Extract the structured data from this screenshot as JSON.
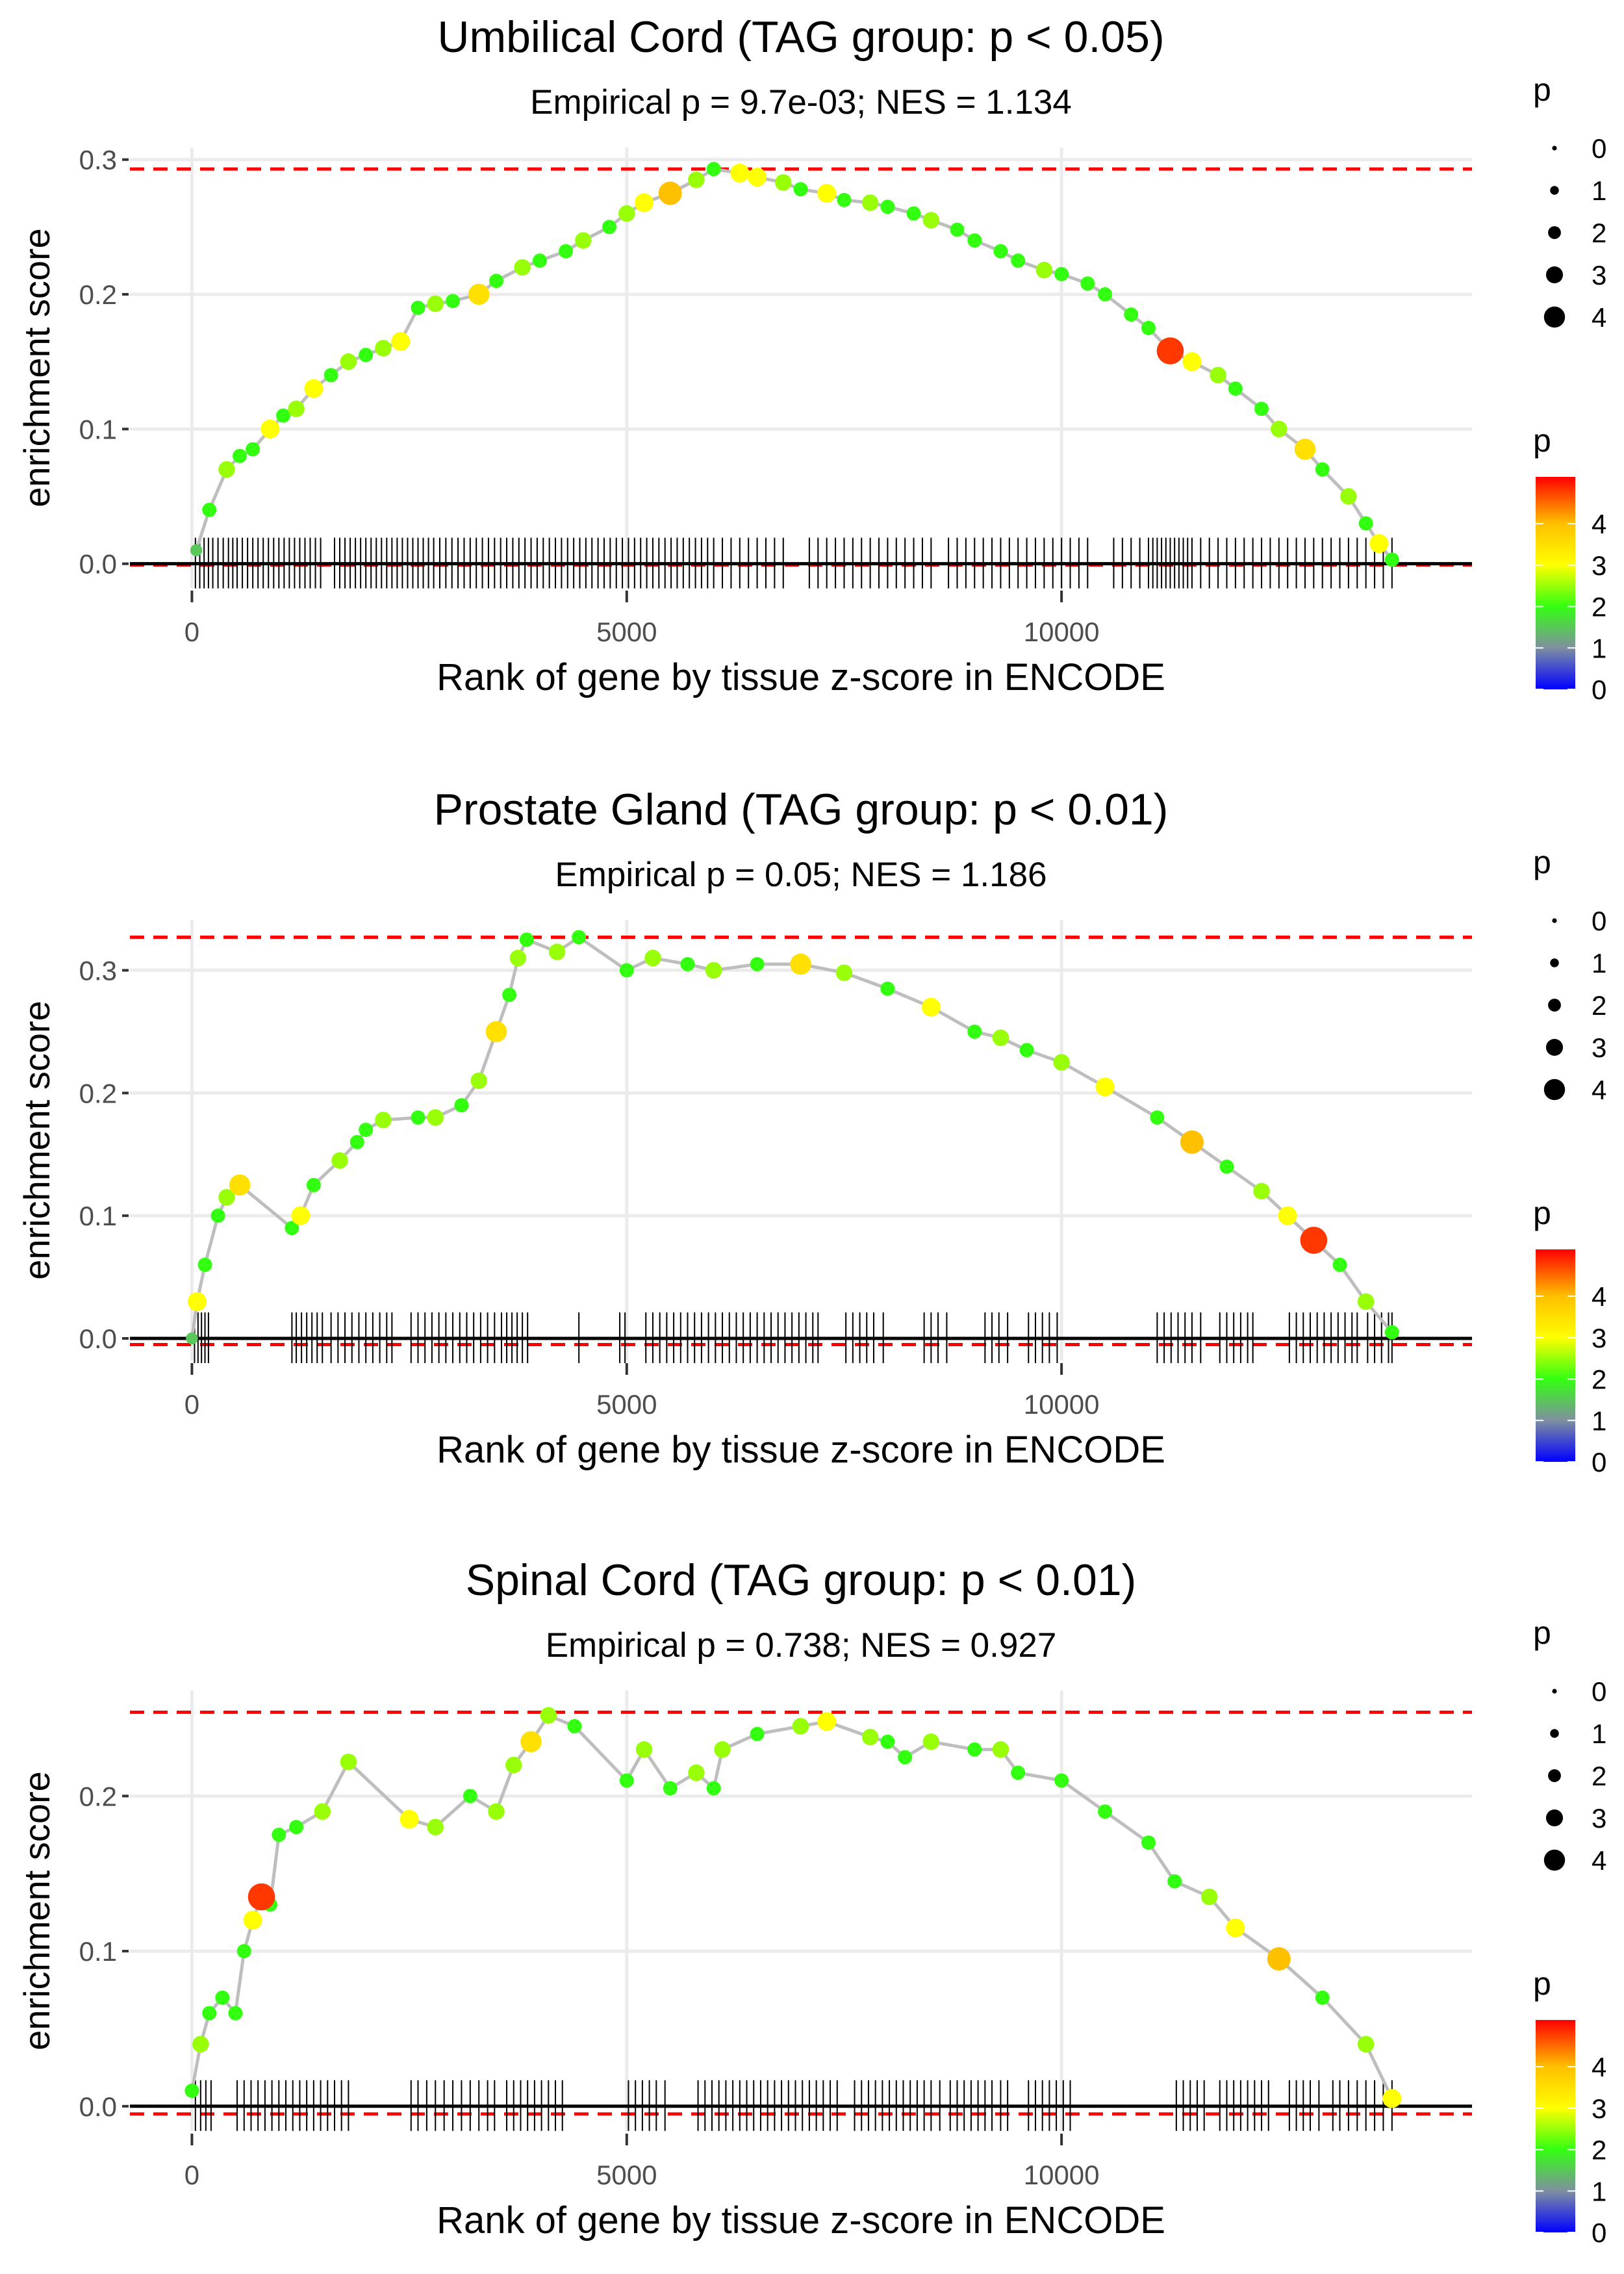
{
  "chart_data": [
    {
      "type": "scatter",
      "title": "Umbilical Cord (TAG group: p < 0.05)",
      "subtitle": "Empirical p = 9.7e-03; NES = 1.134",
      "xlabel": "Rank of gene by tissue z-score in ENCODE",
      "ylabel": "enrichment score",
      "xlim": [
        -713,
        14720
      ],
      "ylim": [
        -0.018,
        0.309
      ],
      "xticks": [
        0,
        5000,
        10000
      ],
      "xtick_labels": [
        "0",
        "5000",
        "10000"
      ],
      "yticks": [
        0,
        0.1,
        0.2,
        0.3
      ],
      "ytick_labels": [
        "0.0",
        "0.1",
        "0.2",
        "0.3"
      ],
      "max_es": 0.293,
      "min_es": -0.001,
      "points": [
        [
          50,
          0.01,
          1.5
        ],
        [
          200,
          0.04,
          2
        ],
        [
          400,
          0.07,
          2.5
        ],
        [
          550,
          0.08,
          2
        ],
        [
          700,
          0.085,
          2
        ],
        [
          900,
          0.1,
          3
        ],
        [
          1050,
          0.11,
          2
        ],
        [
          1200,
          0.115,
          2.5
        ],
        [
          1400,
          0.13,
          3
        ],
        [
          1600,
          0.14,
          2
        ],
        [
          1800,
          0.15,
          2.5
        ],
        [
          2000,
          0.155,
          2
        ],
        [
          2200,
          0.16,
          2.5
        ],
        [
          2400,
          0.165,
          3
        ],
        [
          2600,
          0.19,
          2
        ],
        [
          2800,
          0.193,
          2.5
        ],
        [
          3000,
          0.195,
          2
        ],
        [
          3300,
          0.2,
          3.5
        ],
        [
          3500,
          0.21,
          2
        ],
        [
          3800,
          0.22,
          2.5
        ],
        [
          4000,
          0.225,
          2
        ],
        [
          4300,
          0.232,
          2
        ],
        [
          4500,
          0.24,
          2.5
        ],
        [
          4800,
          0.25,
          2
        ],
        [
          5000,
          0.26,
          2.5
        ],
        [
          5200,
          0.268,
          3
        ],
        [
          5500,
          0.275,
          4
        ],
        [
          5800,
          0.285,
          2.5
        ],
        [
          6000,
          0.293,
          2
        ],
        [
          6300,
          0.29,
          3
        ],
        [
          6500,
          0.287,
          3
        ],
        [
          6800,
          0.283,
          2.5
        ],
        [
          7000,
          0.278,
          2
        ],
        [
          7300,
          0.275,
          3
        ],
        [
          7500,
          0.27,
          2
        ],
        [
          7800,
          0.268,
          2.5
        ],
        [
          8000,
          0.265,
          2
        ],
        [
          8300,
          0.26,
          2
        ],
        [
          8500,
          0.255,
          2.5
        ],
        [
          8800,
          0.248,
          2
        ],
        [
          9000,
          0.24,
          2
        ],
        [
          9300,
          0.232,
          2
        ],
        [
          9500,
          0.225,
          2
        ],
        [
          9800,
          0.218,
          2.5
        ],
        [
          10000,
          0.215,
          2
        ],
        [
          10300,
          0.208,
          2
        ],
        [
          10500,
          0.2,
          2
        ],
        [
          10800,
          0.185,
          2
        ],
        [
          11000,
          0.175,
          2
        ],
        [
          11250,
          0.158,
          4.8
        ],
        [
          11500,
          0.15,
          3
        ],
        [
          11800,
          0.14,
          2.5
        ],
        [
          12000,
          0.13,
          2
        ],
        [
          12300,
          0.115,
          2
        ],
        [
          12500,
          0.1,
          2.5
        ],
        [
          12800,
          0.085,
          3.5
        ],
        [
          13000,
          0.07,
          2
        ],
        [
          13300,
          0.05,
          2.5
        ],
        [
          13500,
          0.03,
          2
        ],
        [
          13650,
          0.015,
          3
        ],
        [
          13800,
          0.003,
          2
        ]
      ],
      "rug": [
        40,
        90,
        140,
        190,
        240,
        300,
        360,
        420,
        470,
        520,
        580,
        640,
        700,
        760,
        820,
        880,
        940,
        1000,
        1060,
        1120,
        1180,
        1240,
        1300,
        1360,
        1420,
        1480,
        1640,
        1700,
        1760,
        1820,
        1880,
        1940,
        2000,
        2060,
        2120,
        2180,
        2240,
        2300,
        2360,
        2420,
        2480,
        2540,
        2600,
        2660,
        2720,
        2780,
        2850,
        2920,
        2990,
        3060,
        3130,
        3200,
        3270,
        3340,
        3410,
        3480,
        3550,
        3620,
        3690,
        3760,
        3830,
        3900,
        3970,
        4040,
        4110,
        4180,
        4250,
        4320,
        4390,
        4460,
        4530,
        4600,
        4670,
        4740,
        4810,
        4880,
        4950,
        5020,
        5090,
        5160,
        5230,
        5300,
        5370,
        5440,
        5510,
        5580,
        5650,
        5720,
        5790,
        5860,
        5930,
        6000,
        6100,
        6200,
        6300,
        6400,
        6500,
        6600,
        6700,
        6800,
        7100,
        7200,
        7300,
        7400,
        7500,
        7600,
        7700,
        7800,
        7900,
        8000,
        8100,
        8200,
        8300,
        8400,
        8500,
        8700,
        8800,
        8900,
        9000,
        9100,
        9200,
        9300,
        9400,
        9500,
        9600,
        9700,
        9800,
        9900,
        10000,
        10100,
        10200,
        10300,
        10600,
        10700,
        10800,
        10900,
        11000,
        11050,
        11100,
        11150,
        11200,
        11250,
        11300,
        11350,
        11400,
        11450,
        11500,
        11600,
        11700,
        11800,
        11900,
        12000,
        12100,
        12200,
        12300,
        12400,
        12500,
        12600,
        12700,
        12800,
        12900,
        13000,
        13100,
        13200,
        13300,
        13400,
        13500,
        13600,
        13700,
        13800
      ],
      "size_legend": {
        "title": "p",
        "labels": [
          "0",
          "1",
          "2",
          "3",
          "4"
        ]
      },
      "color_legend": {
        "title": "p",
        "labels": [
          "4",
          "3",
          "2",
          "1",
          "0"
        ],
        "limits": [
          0,
          5.13
        ]
      }
    },
    {
      "type": "scatter",
      "title": "Prostate Gland (TAG group: p < 0.01)",
      "subtitle": "Empirical p = 0.05; NES = 1.186",
      "xlabel": "Rank of gene by tissue z-score in ENCODE",
      "ylabel": "enrichment score",
      "xlim": [
        -713,
        14720
      ],
      "ylim": [
        -0.018,
        0.341
      ],
      "xticks": [
        0,
        5000,
        10000
      ],
      "xtick_labels": [
        "0",
        "5000",
        "10000"
      ],
      "yticks": [
        0,
        0.1,
        0.2,
        0.3
      ],
      "ytick_labels": [
        "0.0",
        "0.1",
        "0.2",
        "0.3"
      ],
      "max_es": 0.327,
      "min_es": -0.005,
      "points": [
        [
          0,
          0.0,
          1.5
        ],
        [
          60,
          0.03,
          3
        ],
        [
          150,
          0.06,
          2
        ],
        [
          300,
          0.1,
          2
        ],
        [
          400,
          0.115,
          2.5
        ],
        [
          550,
          0.125,
          3.5
        ],
        [
          1150,
          0.09,
          2
        ],
        [
          1250,
          0.1,
          3
        ],
        [
          1400,
          0.125,
          2
        ],
        [
          1700,
          0.145,
          2.5
        ],
        [
          1900,
          0.16,
          2
        ],
        [
          2000,
          0.17,
          2
        ],
        [
          2200,
          0.178,
          2.5
        ],
        [
          2600,
          0.18,
          2
        ],
        [
          2800,
          0.18,
          2.5
        ],
        [
          3100,
          0.19,
          2
        ],
        [
          3300,
          0.21,
          2.5
        ],
        [
          3500,
          0.25,
          3.5
        ],
        [
          3650,
          0.28,
          2
        ],
        [
          3750,
          0.31,
          2.5
        ],
        [
          3850,
          0.325,
          2
        ],
        [
          4200,
          0.315,
          2.5
        ],
        [
          4450,
          0.327,
          2
        ],
        [
          5000,
          0.3,
          2
        ],
        [
          5300,
          0.31,
          2.5
        ],
        [
          5700,
          0.305,
          2
        ],
        [
          6000,
          0.3,
          2.5
        ],
        [
          6500,
          0.305,
          2
        ],
        [
          7000,
          0.305,
          3.5
        ],
        [
          7500,
          0.298,
          2.5
        ],
        [
          8000,
          0.285,
          2
        ],
        [
          8500,
          0.27,
          3
        ],
        [
          9000,
          0.25,
          2
        ],
        [
          9300,
          0.245,
          2.5
        ],
        [
          9600,
          0.235,
          2
        ],
        [
          10000,
          0.225,
          2.5
        ],
        [
          10500,
          0.205,
          3
        ],
        [
          11100,
          0.18,
          2
        ],
        [
          11500,
          0.16,
          4
        ],
        [
          11900,
          0.14,
          2
        ],
        [
          12300,
          0.12,
          2.5
        ],
        [
          12600,
          0.1,
          3
        ],
        [
          12900,
          0.08,
          4.8
        ],
        [
          13200,
          0.06,
          2
        ],
        [
          13500,
          0.03,
          2.5
        ],
        [
          13800,
          0.005,
          2
        ]
      ],
      "rug": [
        30,
        70,
        110,
        150,
        190,
        1150,
        1200,
        1260,
        1320,
        1380,
        1440,
        1500,
        1600,
        1680,
        1760,
        1840,
        1920,
        2000,
        2080,
        2160,
        2240,
        2300,
        2520,
        2600,
        2680,
        2760,
        2840,
        2920,
        3000,
        3080,
        3160,
        3240,
        3320,
        3400,
        3480,
        3560,
        3620,
        3680,
        3740,
        3800,
        3860,
        4450,
        4920,
        4980,
        5220,
        5300,
        5380,
        5460,
        5540,
        5620,
        5700,
        5780,
        5860,
        5940,
        6020,
        6100,
        6180,
        6260,
        6340,
        6420,
        6500,
        6580,
        6660,
        6740,
        6820,
        6900,
        6980,
        7060,
        7140,
        7200,
        7520,
        7600,
        7680,
        7760,
        7840,
        7950,
        8420,
        8500,
        8580,
        8680,
        9120,
        9200,
        9280,
        9380,
        9620,
        9700,
        9780,
        9860,
        9950,
        11100,
        11180,
        11260,
        11340,
        11420,
        11500,
        11600,
        11820,
        11900,
        11980,
        12060,
        12140,
        12200,
        12620,
        12700,
        12780,
        12860,
        12940,
        13020,
        13100,
        13180,
        13260,
        13340,
        13400,
        13520,
        13600,
        13680,
        13760,
        13800
      ],
      "size_legend": {
        "title": "p",
        "labels": [
          "0",
          "1",
          "2",
          "3",
          "4"
        ]
      },
      "color_legend": {
        "title": "p",
        "labels": [
          "4",
          "3",
          "2",
          "1",
          "0"
        ],
        "limits": [
          0,
          5.13
        ]
      }
    },
    {
      "type": "scatter",
      "title": "Spinal Cord (TAG group: p < 0.01)",
      "subtitle": "Empirical p = 0.738; NES = 0.927",
      "xlabel": "Rank of gene by tissue z-score in ENCODE",
      "ylabel": "enrichment score",
      "xlim": [
        -713,
        14720
      ],
      "ylim": [
        -0.016,
        0.268
      ],
      "xticks": [
        0,
        5000,
        10000
      ],
      "xtick_labels": [
        "0",
        "5000",
        "10000"
      ],
      "yticks": [
        0,
        0.1,
        0.2
      ],
      "ytick_labels": [
        "0.0",
        "0.1",
        "0.2"
      ],
      "max_es": 0.254,
      "min_es": -0.005,
      "points": [
        [
          0,
          0.01,
          2
        ],
        [
          100,
          0.04,
          2.5
        ],
        [
          200,
          0.06,
          2
        ],
        [
          350,
          0.07,
          2
        ],
        [
          500,
          0.06,
          2
        ],
        [
          600,
          0.1,
          2
        ],
        [
          700,
          0.12,
          3
        ],
        [
          800,
          0.135,
          4.8
        ],
        [
          900,
          0.13,
          2
        ],
        [
          1000,
          0.175,
          2
        ],
        [
          1200,
          0.18,
          2
        ],
        [
          1500,
          0.19,
          2.5
        ],
        [
          1800,
          0.222,
          2.5
        ],
        [
          2500,
          0.185,
          3
        ],
        [
          2800,
          0.18,
          2.5
        ],
        [
          3200,
          0.2,
          2
        ],
        [
          3500,
          0.19,
          2.5
        ],
        [
          3700,
          0.22,
          2.5
        ],
        [
          3900,
          0.235,
          3.5
        ],
        [
          4100,
          0.252,
          2.5
        ],
        [
          4400,
          0.245,
          2
        ],
        [
          5000,
          0.21,
          2
        ],
        [
          5200,
          0.23,
          2.5
        ],
        [
          5500,
          0.205,
          2
        ],
        [
          5800,
          0.215,
          2.5
        ],
        [
          6000,
          0.205,
          2
        ],
        [
          6100,
          0.23,
          2.5
        ],
        [
          6500,
          0.24,
          2
        ],
        [
          7000,
          0.245,
          2.5
        ],
        [
          7300,
          0.248,
          3
        ],
        [
          7800,
          0.238,
          2.5
        ],
        [
          8000,
          0.235,
          2
        ],
        [
          8200,
          0.225,
          2
        ],
        [
          8500,
          0.235,
          2.5
        ],
        [
          9000,
          0.23,
          2
        ],
        [
          9300,
          0.23,
          2.5
        ],
        [
          9500,
          0.215,
          2
        ],
        [
          10000,
          0.21,
          2
        ],
        [
          10500,
          0.19,
          2
        ],
        [
          11000,
          0.17,
          2
        ],
        [
          11300,
          0.145,
          2
        ],
        [
          11700,
          0.135,
          2.5
        ],
        [
          12000,
          0.115,
          3
        ],
        [
          12500,
          0.095,
          4
        ],
        [
          13000,
          0.07,
          2
        ],
        [
          13500,
          0.04,
          2.5
        ],
        [
          13800,
          0.005,
          3
        ]
      ],
      "rug": [
        40,
        100,
        160,
        220,
        520,
        600,
        680,
        760,
        840,
        920,
        1000,
        1080,
        1160,
        1240,
        1320,
        1400,
        1480,
        1560,
        1640,
        1720,
        1800,
        2520,
        2600,
        2700,
        2800,
        2900,
        3000,
        3100,
        3200,
        3300,
        3400,
        3480,
        3620,
        3700,
        3780,
        3860,
        3940,
        4020,
        4100,
        4180,
        4260,
        5020,
        5100,
        5180,
        5260,
        5340,
        5440,
        5820,
        5900,
        5980,
        6060,
        6140,
        6220,
        6300,
        6380,
        6460,
        6540,
        6620,
        6700,
        6780,
        6860,
        6940,
        7020,
        7100,
        7180,
        7260,
        7340,
        7420,
        7620,
        7700,
        7780,
        7860,
        7940,
        8020,
        8100,
        8180,
        8260,
        8340,
        8420,
        8500,
        8600,
        8720,
        8800,
        8880,
        8960,
        9040,
        9120,
        9200,
        9300,
        9380,
        9620,
        9700,
        9780,
        9860,
        9940,
        10020,
        10100,
        11320,
        11400,
        11480,
        11560,
        11640,
        11820,
        11900,
        11980,
        12060,
        12140,
        12220,
        12300,
        12380,
        12620,
        12700,
        12780,
        12860,
        12960,
        13120,
        13200,
        13300,
        13400,
        13500,
        13600,
        13700,
        13800
      ],
      "size_legend": {
        "title": "p",
        "labels": [
          "0",
          "1",
          "2",
          "3",
          "4"
        ]
      },
      "color_legend": {
        "title": "p",
        "labels": [
          "4",
          "3",
          "2",
          "1",
          "0"
        ],
        "limits": [
          0,
          5.13
        ]
      }
    }
  ],
  "colors": {
    "threshold_line": "#ff0000",
    "curve_line": "#bebebe",
    "grid": "#ebebeb",
    "gradient": [
      "#0000ff",
      "#7f8fa0",
      "#33ff11",
      "#ffff00",
      "#ffc000",
      "#ff0000"
    ]
  }
}
